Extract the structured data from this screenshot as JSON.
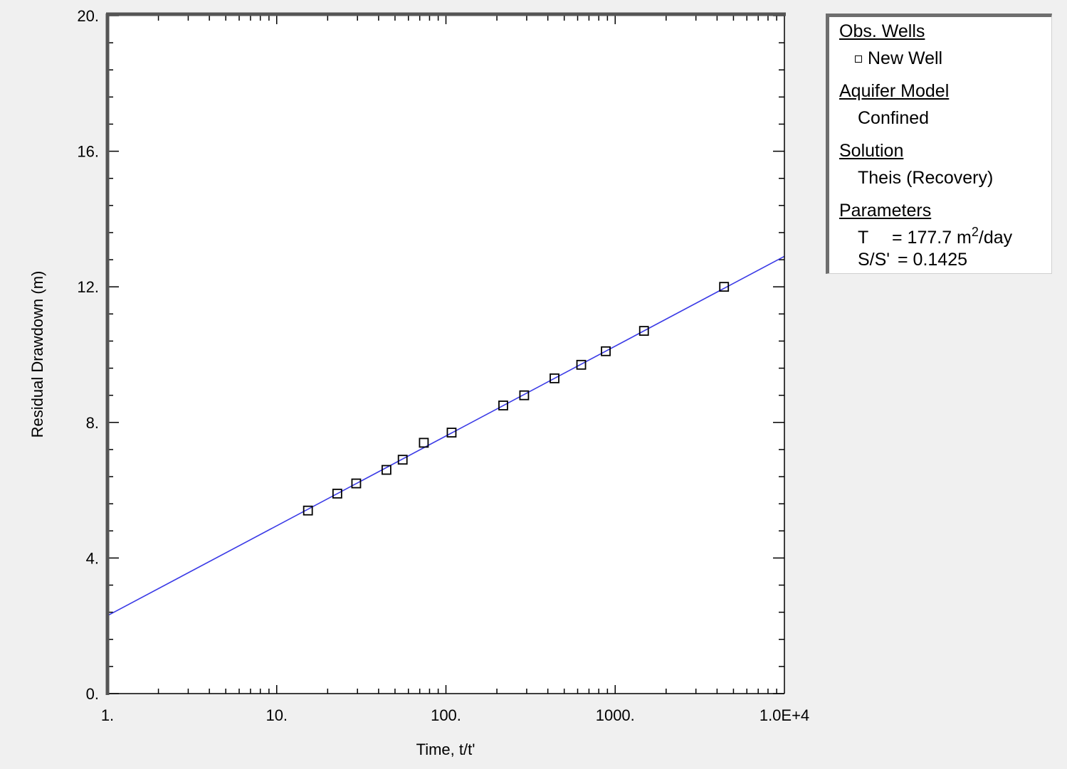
{
  "chart_data": {
    "type": "scatter",
    "xlabel": "Time, t/t'",
    "ylabel": "Residual Drawdown (m)",
    "xscale": "log",
    "xlim": [
      1,
      10000
    ],
    "ylim": [
      0,
      20
    ],
    "x_tick_values": [
      1,
      10,
      100,
      1000,
      10000
    ],
    "x_tick_labels": [
      "1.",
      "10.",
      "100.",
      "1000.",
      "1.0E+4"
    ],
    "y_tick_values": [
      0,
      4,
      8,
      12,
      16,
      20
    ],
    "y_tick_labels": [
      "0.",
      "4.",
      "8.",
      "12.",
      "16.",
      "20."
    ],
    "grid": false,
    "legend_position": "right",
    "series": [
      {
        "name": "New Well",
        "type": "scatter",
        "marker": "square",
        "color": "#000000",
        "x": [
          15.3,
          22.8,
          29.5,
          44.5,
          55.5,
          74,
          108,
          218,
          290,
          438,
          630,
          880,
          1480,
          4400
        ],
        "y": [
          5.4,
          5.9,
          6.2,
          6.6,
          6.9,
          7.4,
          7.7,
          8.5,
          8.8,
          9.3,
          9.7,
          10.1,
          10.7,
          12.0
        ]
      },
      {
        "type": "line",
        "color": "#3a3ae6",
        "x": [
          1,
          10000
        ],
        "y": [
          2.3,
          12.9
        ]
      }
    ]
  },
  "legend": {
    "obs_wells_heading": "Obs. Wells",
    "well_name": "New Well",
    "aquifer_heading": "Aquifer Model",
    "aquifer_value": "Confined",
    "solution_heading": "Solution",
    "solution_value": "Theis (Recovery)",
    "parameters_heading": "Parameters",
    "param_T_symbol": "T",
    "param_T_value": "= 177.7 m",
    "param_T_exp": "2",
    "param_T_unit": "/day",
    "param_S_symbol": "S/S'",
    "param_S_value": "= 0.1425"
  }
}
